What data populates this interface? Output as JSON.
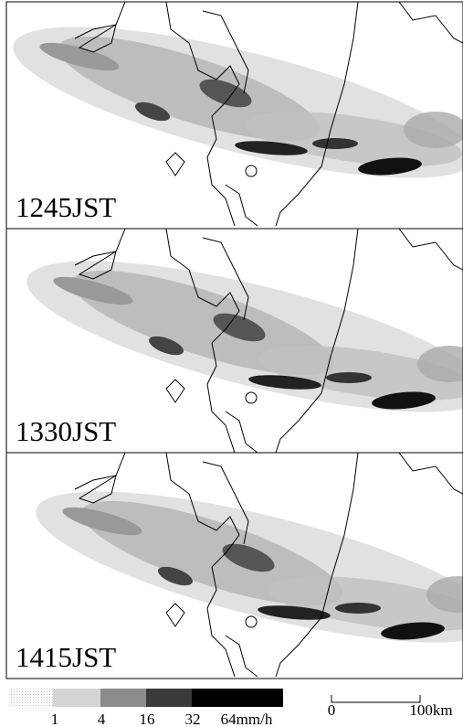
{
  "panels": [
    {
      "label": "1245JST"
    },
    {
      "label": "1330JST"
    },
    {
      "label": "1415JST"
    }
  ],
  "legend": {
    "labels": [
      "1",
      "4",
      "16",
      "32",
      "64mm/h"
    ]
  },
  "scale_bar": {
    "labels": [
      "0",
      "100km"
    ]
  }
}
